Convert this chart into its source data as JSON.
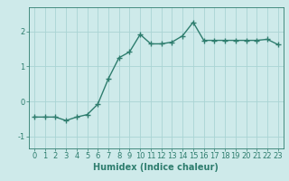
{
  "x": [
    0,
    1,
    2,
    3,
    4,
    5,
    6,
    7,
    8,
    9,
    10,
    11,
    12,
    13,
    14,
    15,
    16,
    17,
    18,
    19,
    20,
    21,
    22,
    23
  ],
  "y": [
    -0.45,
    -0.45,
    -0.45,
    -0.55,
    -0.45,
    -0.38,
    -0.08,
    0.65,
    1.25,
    1.42,
    1.92,
    1.65,
    1.65,
    1.7,
    1.88,
    2.27,
    1.75,
    1.75,
    1.75,
    1.75,
    1.75,
    1.75,
    1.78,
    1.63
  ],
  "line_color": "#2e7d6e",
  "marker": "+",
  "marker_size": 4,
  "marker_edge_width": 1.0,
  "xlabel": "Humidex (Indice chaleur)",
  "xlim": [
    -0.5,
    23.5
  ],
  "ylim": [
    -1.35,
    2.7
  ],
  "yticks": [
    -1,
    0,
    1,
    2
  ],
  "xticks": [
    0,
    1,
    2,
    3,
    4,
    5,
    6,
    7,
    8,
    9,
    10,
    11,
    12,
    13,
    14,
    15,
    16,
    17,
    18,
    19,
    20,
    21,
    22,
    23
  ],
  "bg_color": "#ceeaea",
  "grid_color": "#aad4d4",
  "tick_fontsize": 6,
  "xlabel_fontsize": 7,
  "line_width": 1.0
}
